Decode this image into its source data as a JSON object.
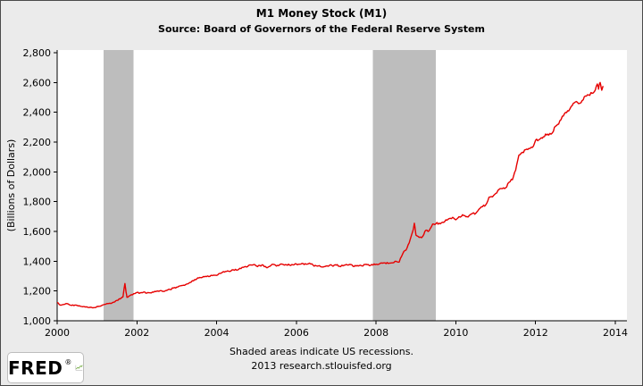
{
  "header": {
    "title": "M1 Money Stock (M1)",
    "subtitle": "Source: Board of Governors of the Federal Reserve System"
  },
  "footer": {
    "note": "Shaded areas indicate US recessions.",
    "credit": "2013 research.stlouisfed.org"
  },
  "logo": {
    "text": "FRED",
    "registered": "®"
  },
  "colors": {
    "background": "#ebebeb",
    "plot_bg": "#ffffff",
    "line": "#e60000",
    "recession": "#bdbdbd",
    "axis": "#000000",
    "logo_green": "#5a9e1f"
  },
  "chart_data": {
    "type": "line",
    "title": "M1 Money Stock (M1)",
    "xlabel": "",
    "ylabel": "(Billions of Dollars)",
    "x_range": [
      2000,
      2014
    ],
    "y_range": [
      1000,
      2800
    ],
    "grid": false,
    "legend": false,
    "y_ticks": [
      {
        "v": 1000,
        "label": "1,000"
      },
      {
        "v": 1200,
        "label": "1,200"
      },
      {
        "v": 1400,
        "label": "1,400"
      },
      {
        "v": 1600,
        "label": "1,600"
      },
      {
        "v": 1800,
        "label": "1,800"
      },
      {
        "v": 2000,
        "label": "2,000"
      },
      {
        "v": 2200,
        "label": "2,200"
      },
      {
        "v": 2400,
        "label": "2,400"
      },
      {
        "v": 2600,
        "label": "2,600"
      },
      {
        "v": 2800,
        "label": "2,800"
      }
    ],
    "x_ticks": [
      {
        "v": 2000,
        "label": "2000"
      },
      {
        "v": 2002,
        "label": "2002"
      },
      {
        "v": 2004,
        "label": "2004"
      },
      {
        "v": 2006,
        "label": "2006"
      },
      {
        "v": 2008,
        "label": "2008"
      },
      {
        "v": 2010,
        "label": "2010"
      },
      {
        "v": 2012,
        "label": "2012"
      },
      {
        "v": 2014,
        "label": "2014"
      }
    ],
    "recessions": [
      {
        "start": 2001.17,
        "end": 2001.92
      },
      {
        "start": 2007.92,
        "end": 2009.5
      }
    ],
    "series": [
      {
        "name": "M1 Money Stock",
        "points": [
          [
            2000.0,
            1123
          ],
          [
            2000.08,
            1105
          ],
          [
            2000.17,
            1110
          ],
          [
            2000.25,
            1115
          ],
          [
            2000.33,
            1105
          ],
          [
            2000.42,
            1102
          ],
          [
            2000.5,
            1103
          ],
          [
            2000.58,
            1098
          ],
          [
            2000.67,
            1096
          ],
          [
            2000.75,
            1093
          ],
          [
            2000.83,
            1091
          ],
          [
            2000.92,
            1088
          ],
          [
            2001.0,
            1096
          ],
          [
            2001.08,
            1098
          ],
          [
            2001.17,
            1108
          ],
          [
            2001.25,
            1116
          ],
          [
            2001.33,
            1117
          ],
          [
            2001.42,
            1125
          ],
          [
            2001.5,
            1137
          ],
          [
            2001.58,
            1147
          ],
          [
            2001.65,
            1160
          ],
          [
            2001.7,
            1250
          ],
          [
            2001.73,
            1190
          ],
          [
            2001.75,
            1158
          ],
          [
            2001.83,
            1170
          ],
          [
            2001.92,
            1182
          ],
          [
            2002.0,
            1190
          ],
          [
            2002.08,
            1187
          ],
          [
            2002.17,
            1193
          ],
          [
            2002.25,
            1186
          ],
          [
            2002.33,
            1188
          ],
          [
            2002.42,
            1192
          ],
          [
            2002.5,
            1199
          ],
          [
            2002.58,
            1202
          ],
          [
            2002.67,
            1197
          ],
          [
            2002.75,
            1204
          ],
          [
            2002.83,
            1210
          ],
          [
            2002.92,
            1220
          ],
          [
            2003.0,
            1226
          ],
          [
            2003.08,
            1234
          ],
          [
            2003.17,
            1239
          ],
          [
            2003.25,
            1247
          ],
          [
            2003.33,
            1257
          ],
          [
            2003.42,
            1268
          ],
          [
            2003.5,
            1281
          ],
          [
            2003.58,
            1291
          ],
          [
            2003.67,
            1297
          ],
          [
            2003.75,
            1297
          ],
          [
            2003.83,
            1298
          ],
          [
            2003.92,
            1306
          ],
          [
            2004.0,
            1305
          ],
          [
            2004.08,
            1318
          ],
          [
            2004.17,
            1330
          ],
          [
            2004.25,
            1332
          ],
          [
            2004.33,
            1331
          ],
          [
            2004.42,
            1342
          ],
          [
            2004.5,
            1340
          ],
          [
            2004.58,
            1352
          ],
          [
            2004.67,
            1359
          ],
          [
            2004.75,
            1361
          ],
          [
            2004.83,
            1375
          ],
          [
            2004.92,
            1376
          ],
          [
            2005.0,
            1367
          ],
          [
            2005.08,
            1372
          ],
          [
            2005.17,
            1373
          ],
          [
            2005.25,
            1357
          ],
          [
            2005.33,
            1365
          ],
          [
            2005.42,
            1379
          ],
          [
            2005.5,
            1367
          ],
          [
            2005.58,
            1376
          ],
          [
            2005.67,
            1378
          ],
          [
            2005.75,
            1376
          ],
          [
            2005.83,
            1374
          ],
          [
            2005.92,
            1375
          ],
          [
            2006.0,
            1381
          ],
          [
            2006.08,
            1380
          ],
          [
            2006.17,
            1384
          ],
          [
            2006.25,
            1380
          ],
          [
            2006.33,
            1387
          ],
          [
            2006.42,
            1374
          ],
          [
            2006.5,
            1369
          ],
          [
            2006.58,
            1370
          ],
          [
            2006.67,
            1361
          ],
          [
            2006.75,
            1368
          ],
          [
            2006.83,
            1372
          ],
          [
            2006.92,
            1366
          ],
          [
            2007.0,
            1374
          ],
          [
            2007.08,
            1366
          ],
          [
            2007.17,
            1369
          ],
          [
            2007.25,
            1378
          ],
          [
            2007.33,
            1378
          ],
          [
            2007.42,
            1366
          ],
          [
            2007.5,
            1368
          ],
          [
            2007.58,
            1371
          ],
          [
            2007.67,
            1368
          ],
          [
            2007.75,
            1379
          ],
          [
            2007.83,
            1370
          ],
          [
            2007.92,
            1374
          ],
          [
            2008.0,
            1380
          ],
          [
            2008.08,
            1381
          ],
          [
            2008.17,
            1387
          ],
          [
            2008.25,
            1384
          ],
          [
            2008.33,
            1387
          ],
          [
            2008.42,
            1389
          ],
          [
            2008.5,
            1399
          ],
          [
            2008.58,
            1394
          ],
          [
            2008.67,
            1452
          ],
          [
            2008.75,
            1474
          ],
          [
            2008.83,
            1523
          ],
          [
            2008.92,
            1602
          ],
          [
            2008.96,
            1655
          ],
          [
            2009.0,
            1575
          ],
          [
            2009.08,
            1560
          ],
          [
            2009.17,
            1567
          ],
          [
            2009.25,
            1608
          ],
          [
            2009.33,
            1605
          ],
          [
            2009.42,
            1650
          ],
          [
            2009.5,
            1652
          ],
          [
            2009.58,
            1655
          ],
          [
            2009.67,
            1662
          ],
          [
            2009.75,
            1678
          ],
          [
            2009.83,
            1686
          ],
          [
            2009.92,
            1695
          ],
          [
            2010.0,
            1678
          ],
          [
            2010.08,
            1699
          ],
          [
            2010.17,
            1712
          ],
          [
            2010.25,
            1699
          ],
          [
            2010.33,
            1705
          ],
          [
            2010.42,
            1722
          ],
          [
            2010.5,
            1722
          ],
          [
            2010.58,
            1749
          ],
          [
            2010.67,
            1766
          ],
          [
            2010.75,
            1778
          ],
          [
            2010.83,
            1829
          ],
          [
            2010.92,
            1832
          ],
          [
            2011.0,
            1855
          ],
          [
            2011.08,
            1881
          ],
          [
            2011.17,
            1888
          ],
          [
            2011.25,
            1893
          ],
          [
            2011.33,
            1929
          ],
          [
            2011.42,
            1947
          ],
          [
            2011.5,
            2011
          ],
          [
            2011.58,
            2112
          ],
          [
            2011.67,
            2131
          ],
          [
            2011.75,
            2149
          ],
          [
            2011.83,
            2157
          ],
          [
            2011.92,
            2164
          ],
          [
            2012.0,
            2212
          ],
          [
            2012.08,
            2215
          ],
          [
            2012.17,
            2226
          ],
          [
            2012.25,
            2254
          ],
          [
            2012.33,
            2247
          ],
          [
            2012.42,
            2262
          ],
          [
            2012.5,
            2306
          ],
          [
            2012.58,
            2321
          ],
          [
            2012.67,
            2373
          ],
          [
            2012.75,
            2399
          ],
          [
            2012.83,
            2409
          ],
          [
            2012.92,
            2446
          ],
          [
            2013.0,
            2470
          ],
          [
            2013.08,
            2458
          ],
          [
            2013.17,
            2479
          ],
          [
            2013.25,
            2509
          ],
          [
            2013.33,
            2516
          ],
          [
            2013.42,
            2527
          ],
          [
            2013.5,
            2551
          ],
          [
            2013.55,
            2590
          ],
          [
            2013.58,
            2555
          ],
          [
            2013.62,
            2600
          ],
          [
            2013.66,
            2548
          ],
          [
            2013.7,
            2575
          ]
        ]
      }
    ]
  }
}
